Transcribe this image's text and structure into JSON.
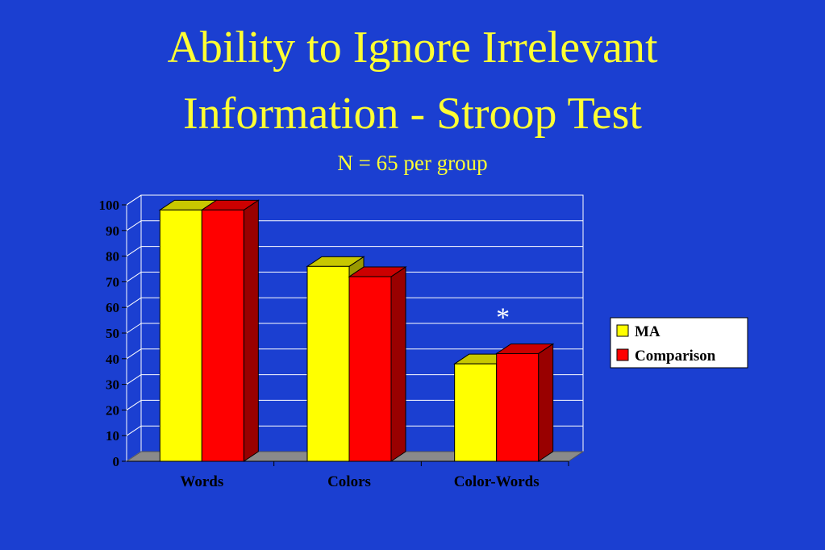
{
  "title_lines": [
    "Ability to Ignore Irrelevant",
    "Information - Stroop Test"
  ],
  "subtitle": "N = 65 per group",
  "chart_data": {
    "type": "bar",
    "categories": [
      "Words",
      "Colors",
      "Color-Words"
    ],
    "series": [
      {
        "name": "MA",
        "values": [
          98,
          76,
          38
        ],
        "color": "#ffff00",
        "top_color": "#c8c800"
      },
      {
        "name": "Comparison",
        "values": [
          98,
          72,
          42
        ],
        "color": "#ff0000",
        "side_color": "#990000",
        "top_color": "#cc0000"
      }
    ],
    "ylim": [
      0,
      100
    ],
    "yticks": [
      0,
      10,
      20,
      30,
      40,
      50,
      60,
      70,
      80,
      90,
      100
    ],
    "grid": true,
    "legend_position": "right",
    "annotations": [
      {
        "text": "*",
        "category": "Color-Words"
      }
    ],
    "xlabel": "",
    "ylabel": ""
  }
}
